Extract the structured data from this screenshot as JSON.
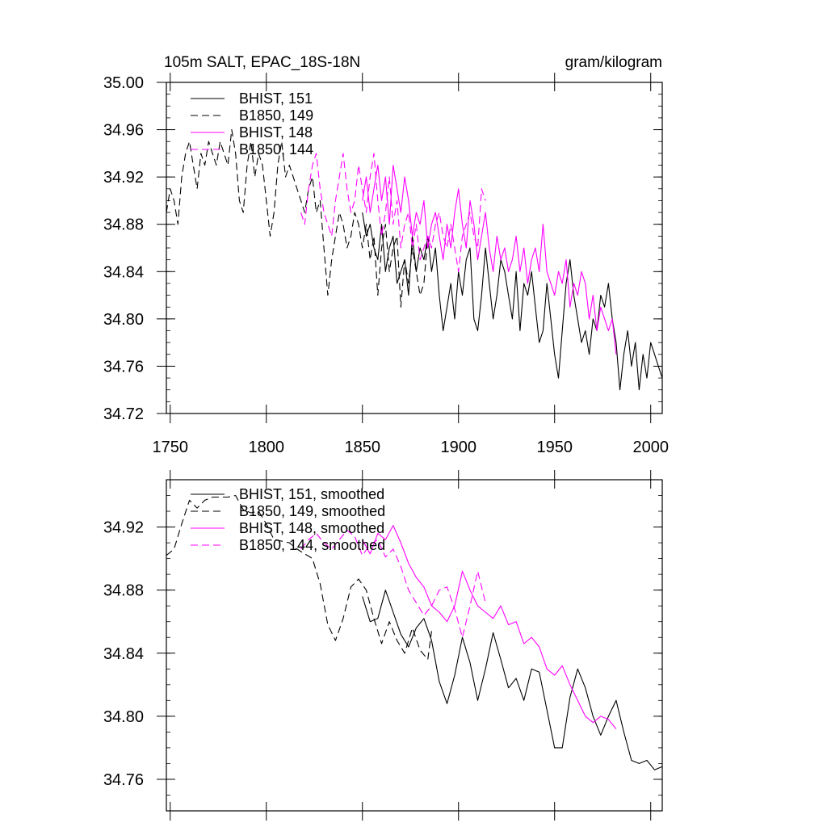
{
  "chart_data": [
    {
      "type": "line",
      "title": "105m SALT, EPAC_18S-18N",
      "units": "gram/kilogram",
      "xlim": [
        1748,
        2006
      ],
      "ylim": [
        34.72,
        35.0
      ],
      "x_ticks": [
        1750,
        1800,
        1850,
        1900,
        1950,
        2000
      ],
      "y_ticks": [
        34.72,
        34.76,
        34.8,
        34.84,
        34.88,
        34.92,
        34.96,
        35.0
      ],
      "y_tick_labels": [
        "34.72",
        "34.76",
        "34.80",
        "34.84",
        "34.88",
        "34.92",
        "34.96",
        "35.00"
      ],
      "x_tick_labels": [
        "1750",
        "1800",
        "1850",
        "1900",
        "1950",
        "2000"
      ],
      "legend_position": "top-left",
      "series": [
        {
          "name": "BHIST, 151",
          "color": "#000000",
          "dash": "solid",
          "x": [
            1850,
            1852,
            1854,
            1856,
            1858,
            1860,
            1862,
            1864,
            1866,
            1868,
            1870,
            1872,
            1874,
            1876,
            1878,
            1880,
            1882,
            1884,
            1886,
            1888,
            1890,
            1892,
            1894,
            1896,
            1898,
            1900,
            1902,
            1904,
            1906,
            1908,
            1910,
            1912,
            1914,
            1916,
            1918,
            1920,
            1922,
            1924,
            1926,
            1928,
            1930,
            1932,
            1934,
            1936,
            1938,
            1940,
            1942,
            1944,
            1946,
            1948,
            1950,
            1952,
            1954,
            1956,
            1958,
            1960,
            1962,
            1964,
            1966,
            1968,
            1970,
            1972,
            1974,
            1976,
            1978,
            1980,
            1982,
            1984,
            1986,
            1988,
            1990,
            1992,
            1994,
            1996,
            1998,
            2000,
            2002,
            2004,
            2006
          ],
          "y": [
            34.89,
            34.87,
            34.88,
            34.86,
            34.85,
            34.88,
            34.84,
            34.86,
            34.87,
            34.83,
            34.84,
            34.85,
            34.82,
            34.87,
            34.84,
            34.86,
            34.85,
            34.87,
            34.84,
            34.86,
            34.82,
            34.79,
            34.81,
            34.83,
            34.8,
            34.84,
            34.82,
            34.85,
            34.86,
            34.8,
            34.79,
            34.82,
            34.86,
            34.83,
            34.8,
            34.82,
            34.85,
            34.84,
            34.82,
            34.8,
            34.84,
            34.79,
            34.83,
            34.82,
            34.84,
            34.81,
            34.78,
            34.79,
            34.83,
            34.8,
            34.77,
            34.75,
            34.79,
            34.83,
            34.85,
            34.82,
            34.8,
            34.78,
            34.79,
            34.77,
            34.8,
            34.79,
            34.82,
            34.81,
            34.83,
            34.8,
            34.78,
            34.74,
            34.77,
            34.79,
            34.76,
            34.78,
            34.74,
            34.77,
            34.75,
            34.78,
            34.77,
            34.76,
            34.75
          ]
        },
        {
          "name": "B1850, 149",
          "color": "#000000",
          "dash": "dashed",
          "x": [
            1748,
            1750,
            1752,
            1754,
            1756,
            1758,
            1760,
            1762,
            1764,
            1766,
            1768,
            1770,
            1772,
            1774,
            1776,
            1778,
            1780,
            1782,
            1784,
            1786,
            1788,
            1790,
            1792,
            1794,
            1796,
            1798,
            1800,
            1802,
            1804,
            1806,
            1808,
            1810,
            1812,
            1814,
            1816,
            1818,
            1820,
            1822,
            1824,
            1826,
            1828,
            1830,
            1832,
            1834,
            1836,
            1838,
            1840,
            1842,
            1844,
            1846,
            1848,
            1850,
            1852,
            1854,
            1856,
            1858,
            1860,
            1862,
            1864,
            1866,
            1868,
            1870,
            1872,
            1874,
            1876,
            1878,
            1880,
            1882,
            1884,
            1886
          ],
          "y": [
            34.89,
            34.91,
            34.9,
            34.88,
            34.92,
            34.94,
            34.95,
            34.93,
            34.91,
            34.94,
            34.93,
            34.95,
            34.94,
            34.93,
            34.95,
            34.94,
            34.93,
            34.96,
            34.94,
            34.9,
            34.89,
            34.93,
            34.95,
            34.92,
            34.94,
            34.93,
            34.9,
            34.87,
            34.89,
            34.93,
            34.95,
            34.92,
            34.93,
            34.92,
            34.91,
            34.9,
            34.89,
            34.91,
            34.92,
            34.89,
            34.9,
            34.86,
            34.82,
            34.85,
            34.87,
            34.89,
            34.88,
            34.86,
            34.87,
            34.89,
            34.88,
            34.86,
            34.88,
            34.85,
            34.87,
            34.82,
            34.86,
            34.88,
            34.84,
            34.86,
            34.87,
            34.81,
            34.85,
            34.83,
            34.86,
            34.84,
            34.82,
            34.83,
            34.87,
            34.86
          ]
        },
        {
          "name": "BHIST, 148",
          "color": "#ff00ff",
          "dash": "solid",
          "x": [
            1850,
            1852,
            1854,
            1856,
            1858,
            1860,
            1862,
            1864,
            1866,
            1868,
            1870,
            1872,
            1874,
            1876,
            1878,
            1880,
            1882,
            1884,
            1886,
            1888,
            1890,
            1892,
            1894,
            1896,
            1898,
            1900,
            1902,
            1904,
            1906,
            1908,
            1910,
            1912,
            1914,
            1916,
            1918,
            1920,
            1922,
            1924,
            1926,
            1928,
            1930,
            1932,
            1934,
            1936,
            1938,
            1940,
            1942,
            1944,
            1946,
            1948,
            1950,
            1952,
            1954,
            1956,
            1958,
            1960,
            1962,
            1964,
            1966,
            1968,
            1970,
            1972,
            1974,
            1976,
            1978,
            1980,
            1982
          ],
          "y": [
            34.9,
            34.92,
            34.89,
            34.91,
            34.93,
            34.9,
            34.92,
            34.88,
            34.93,
            34.91,
            34.89,
            34.92,
            34.9,
            34.87,
            34.89,
            34.88,
            34.9,
            34.86,
            34.88,
            34.89,
            34.87,
            34.85,
            34.88,
            34.86,
            34.89,
            34.91,
            34.88,
            34.86,
            34.9,
            34.88,
            34.85,
            34.87,
            34.89,
            34.86,
            34.84,
            34.87,
            34.85,
            34.86,
            34.84,
            34.85,
            34.87,
            34.84,
            34.86,
            34.83,
            34.85,
            34.86,
            34.84,
            34.88,
            34.84,
            34.83,
            34.82,
            34.84,
            34.83,
            34.85,
            34.81,
            34.83,
            34.82,
            34.84,
            34.83,
            34.8,
            34.82,
            34.79,
            34.81,
            34.8,
            34.79,
            34.8,
            34.77
          ]
        },
        {
          "name": "B1850, 144",
          "color": "#ff00ff",
          "dash": "dashed",
          "x": [
            1818,
            1820,
            1822,
            1824,
            1826,
            1828,
            1830,
            1832,
            1834,
            1836,
            1838,
            1840,
            1842,
            1844,
            1846,
            1848,
            1850,
            1852,
            1854,
            1856,
            1858,
            1860,
            1862,
            1864,
            1866,
            1868,
            1870,
            1872,
            1874,
            1876,
            1878,
            1880,
            1882,
            1884,
            1886,
            1888,
            1890,
            1892,
            1894,
            1896,
            1898,
            1900,
            1902,
            1904,
            1906,
            1908,
            1910,
            1912,
            1914
          ],
          "y": [
            34.89,
            34.88,
            34.91,
            34.93,
            34.94,
            34.91,
            34.89,
            34.88,
            34.87,
            34.9,
            34.92,
            34.94,
            34.91,
            34.89,
            34.9,
            34.93,
            34.91,
            34.89,
            34.92,
            34.94,
            34.9,
            34.87,
            34.89,
            34.92,
            34.88,
            34.9,
            34.86,
            34.88,
            34.89,
            34.86,
            34.88,
            34.85,
            34.86,
            34.87,
            34.86,
            34.88,
            34.89,
            34.87,
            34.86,
            34.88,
            34.86,
            34.84,
            34.87,
            34.88,
            34.89,
            34.87,
            34.86,
            34.91,
            34.9
          ]
        }
      ]
    },
    {
      "type": "line",
      "xlim": [
        1748,
        2006
      ],
      "ylim": [
        34.74,
        34.95
      ],
      "y_ticks": [
        34.76,
        34.8,
        34.84,
        34.88,
        34.92
      ],
      "y_tick_labels": [
        "34.76",
        "34.80",
        "34.84",
        "34.88",
        "34.92"
      ],
      "x_ticks": [
        1750,
        1800,
        1850,
        1900,
        1950,
        2000
      ],
      "legend_position": "top-left",
      "series": [
        {
          "name": "BHIST, 151, smoothed",
          "color": "#000000",
          "dash": "solid",
          "x": [
            1850,
            1854,
            1858,
            1862,
            1866,
            1870,
            1874,
            1878,
            1882,
            1886,
            1890,
            1894,
            1898,
            1902,
            1906,
            1910,
            1914,
            1918,
            1922,
            1926,
            1930,
            1934,
            1938,
            1942,
            1946,
            1950,
            1954,
            1958,
            1962,
            1966,
            1970,
            1974,
            1978,
            1982,
            1986,
            1990,
            1994,
            1998,
            2002,
            2006
          ],
          "y": [
            34.876,
            34.86,
            34.862,
            34.88,
            34.866,
            34.852,
            34.844,
            34.856,
            34.862,
            34.848,
            34.822,
            34.808,
            34.826,
            34.85,
            34.834,
            34.81,
            34.83,
            34.853,
            34.836,
            34.818,
            34.824,
            34.81,
            34.83,
            34.828,
            34.804,
            34.78,
            34.78,
            34.812,
            34.83,
            34.818,
            34.8,
            34.788,
            34.8,
            34.81,
            34.79,
            34.772,
            34.77,
            34.772,
            34.766,
            34.768
          ]
        },
        {
          "name": "B1850, 149, smoothed",
          "color": "#000000",
          "dash": "dashed",
          "x": [
            1748,
            1752,
            1756,
            1760,
            1764,
            1768,
            1772,
            1776,
            1780,
            1784,
            1788,
            1792,
            1796,
            1800,
            1804,
            1808,
            1812,
            1816,
            1820,
            1824,
            1828,
            1832,
            1836,
            1840,
            1844,
            1848,
            1852,
            1856,
            1860,
            1864,
            1868,
            1872,
            1876,
            1880,
            1884,
            1886
          ],
          "y": [
            34.902,
            34.906,
            34.922,
            34.937,
            34.932,
            34.937,
            34.939,
            34.939,
            34.939,
            34.94,
            34.931,
            34.929,
            34.93,
            34.922,
            34.912,
            34.911,
            34.91,
            34.906,
            34.903,
            34.9,
            34.884,
            34.858,
            34.848,
            34.862,
            34.882,
            34.887,
            34.88,
            34.862,
            34.846,
            34.86,
            34.848,
            34.84,
            34.856,
            34.842,
            34.836,
            34.854
          ]
        },
        {
          "name": "BHIST, 148, smoothed",
          "color": "#ff00ff",
          "dash": "solid",
          "x": [
            1850,
            1854,
            1858,
            1862,
            1866,
            1870,
            1874,
            1878,
            1882,
            1886,
            1890,
            1894,
            1898,
            1902,
            1906,
            1910,
            1914,
            1918,
            1922,
            1926,
            1930,
            1934,
            1938,
            1942,
            1946,
            1950,
            1954,
            1958,
            1962,
            1966,
            1970,
            1974,
            1978,
            1982
          ],
          "y": [
            34.912,
            34.903,
            34.916,
            34.912,
            34.921,
            34.91,
            34.897,
            34.888,
            34.882,
            34.87,
            34.866,
            34.86,
            34.87,
            34.892,
            34.88,
            34.87,
            34.866,
            34.862,
            34.87,
            34.858,
            34.86,
            34.846,
            34.85,
            34.844,
            34.83,
            34.826,
            34.832,
            34.82,
            34.81,
            34.8,
            34.796,
            34.8,
            34.798,
            34.792
          ]
        },
        {
          "name": "B1850, 144, smoothed",
          "color": "#ff00ff",
          "dash": "dashed",
          "x": [
            1818,
            1822,
            1826,
            1830,
            1834,
            1838,
            1842,
            1846,
            1850,
            1854,
            1858,
            1862,
            1866,
            1870,
            1874,
            1878,
            1882,
            1886,
            1890,
            1894,
            1898,
            1902,
            1906,
            1910,
            1914
          ],
          "y": [
            34.906,
            34.912,
            34.916,
            34.91,
            34.906,
            34.912,
            34.918,
            34.914,
            34.902,
            34.909,
            34.912,
            34.901,
            34.906,
            34.895,
            34.88,
            34.872,
            34.864,
            34.87,
            34.88,
            34.882,
            34.868,
            34.85,
            34.87,
            34.892,
            34.872
          ]
        }
      ]
    }
  ]
}
